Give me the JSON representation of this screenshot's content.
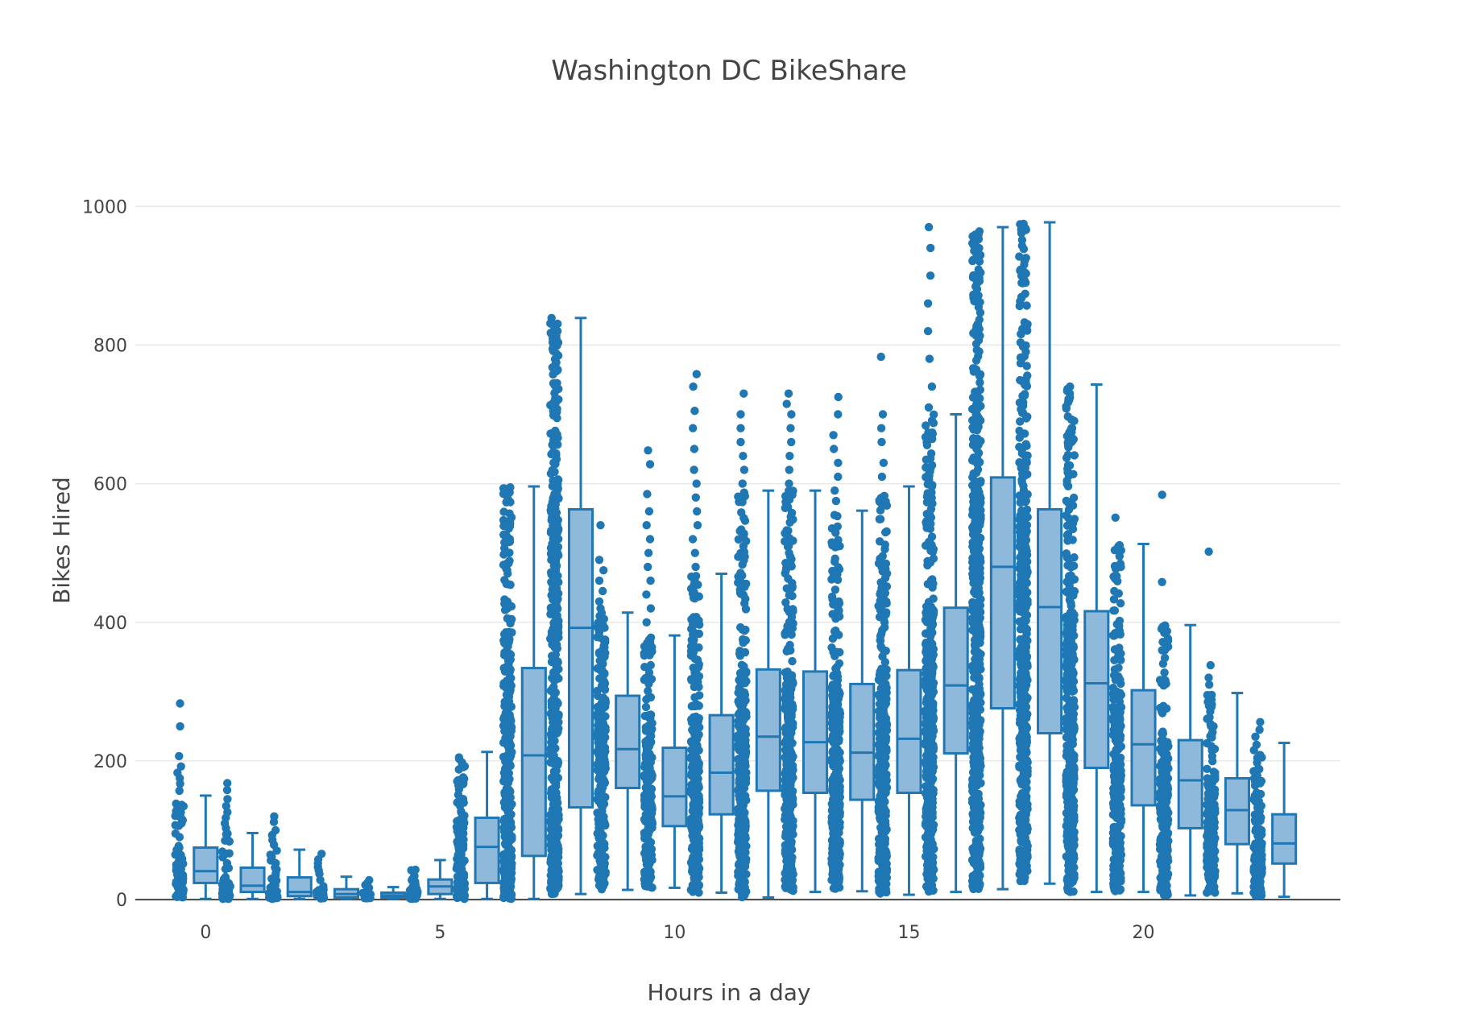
{
  "chart_data": {
    "type": "box",
    "title": "Washington DC BikeShare",
    "xlabel": "Hours in a day",
    "ylabel": "Bikes Hired",
    "xlim": [
      -1.5,
      24.2
    ],
    "ylim": [
      -15,
      1070
    ],
    "x_ticks": [
      0,
      5,
      10,
      15,
      20
    ],
    "y_ticks": [
      0,
      200,
      400,
      600,
      800,
      1000
    ],
    "grid": true,
    "legend": "none",
    "points": "all",
    "colors": {
      "box_line": "#1f77b4",
      "box_fill": "#8fb9da",
      "point": "#1f77b4",
      "grid": "#e8e8e8",
      "zero_line": "#444444",
      "text": "#444444"
    },
    "hours": [
      {
        "x": 0,
        "min": 1,
        "q1": 24,
        "median": 41,
        "q3": 75,
        "max": 150,
        "outliers": [
          157,
          167,
          175,
          183,
          192,
          207,
          250,
          283
        ]
      },
      {
        "x": 1,
        "min": 1,
        "q1": 11,
        "median": 20,
        "q3": 46,
        "max": 96,
        "outliers": [
          103,
          110,
          118,
          126,
          135,
          145,
          158,
          168
        ]
      },
      {
        "x": 2,
        "min": 1,
        "q1": 5,
        "median": 11,
        "q3": 32,
        "max": 72,
        "outliers": [
          79,
          86,
          93,
          100,
          112,
          120
        ]
      },
      {
        "x": 3,
        "min": 1,
        "q1": 3,
        "median": 8,
        "q3": 15,
        "max": 33,
        "outliers": [
          37,
          42,
          47,
          52,
          58,
          66
        ]
      },
      {
        "x": 4,
        "min": 1,
        "q1": 3,
        "median": 6,
        "q3": 10,
        "max": 18,
        "outliers": [
          21,
          24,
          28
        ]
      },
      {
        "x": 5,
        "min": 1,
        "q1": 8,
        "median": 19,
        "q3": 29,
        "max": 57,
        "outliers": []
      },
      {
        "x": 6,
        "min": 1,
        "q1": 24,
        "median": 76,
        "q3": 118,
        "max": 213,
        "outliers": []
      },
      {
        "x": 7,
        "min": 1,
        "q1": 63,
        "median": 208,
        "q3": 334,
        "max": 596,
        "outliers": []
      },
      {
        "x": 8,
        "min": 8,
        "q1": 133,
        "median": 392,
        "q3": 563,
        "max": 839,
        "outliers": []
      },
      {
        "x": 9,
        "min": 14,
        "q1": 161,
        "median": 217,
        "q3": 294,
        "max": 414,
        "outliers": [
          420,
          430,
          445,
          460,
          475,
          490,
          540
        ]
      },
      {
        "x": 10,
        "min": 17,
        "q1": 106,
        "median": 149,
        "q3": 219,
        "max": 381,
        "outliers": [
          400,
          420,
          440,
          460,
          480,
          500,
          520,
          540,
          560,
          585,
          628,
          648
        ]
      },
      {
        "x": 11,
        "min": 10,
        "q1": 123,
        "median": 183,
        "q3": 266,
        "max": 470,
        "outliers": [
          480,
          500,
          520,
          540,
          560,
          580,
          600,
          620,
          650,
          680,
          705,
          740,
          758
        ]
      },
      {
        "x": 12,
        "min": 3,
        "q1": 157,
        "median": 235,
        "q3": 332,
        "max": 590,
        "outliers": [
          600,
          620,
          640,
          660,
          680,
          700,
          730
        ]
      },
      {
        "x": 13,
        "min": 11,
        "q1": 154,
        "median": 227,
        "q3": 329,
        "max": 590,
        "outliers": [
          600,
          620,
          640,
          660,
          680,
          700,
          715,
          730
        ]
      },
      {
        "x": 14,
        "min": 12,
        "q1": 144,
        "median": 212,
        "q3": 311,
        "max": 561,
        "outliers": [
          575,
          590,
          610,
          630,
          650,
          670,
          700,
          725
        ]
      },
      {
        "x": 15,
        "min": 7,
        "q1": 154,
        "median": 232,
        "q3": 331,
        "max": 596,
        "outliers": [
          610,
          630,
          660,
          680,
          700,
          783
        ]
      },
      {
        "x": 16,
        "min": 11,
        "q1": 211,
        "median": 309,
        "q3": 421,
        "max": 700,
        "outliers": [
          710,
          740,
          780,
          820,
          860,
          900,
          940,
          970
        ]
      },
      {
        "x": 17,
        "min": 15,
        "q1": 276,
        "median": 480,
        "q3": 609,
        "max": 970,
        "outliers": []
      },
      {
        "x": 18,
        "min": 23,
        "q1": 240,
        "median": 422,
        "q3": 563,
        "max": 977,
        "outliers": []
      },
      {
        "x": 19,
        "min": 11,
        "q1": 190,
        "median": 312,
        "q3": 416,
        "max": 743,
        "outliers": []
      },
      {
        "x": 20,
        "min": 11,
        "q1": 136,
        "median": 224,
        "q3": 302,
        "max": 513,
        "outliers": [
          551
        ]
      },
      {
        "x": 21,
        "min": 6,
        "q1": 103,
        "median": 172,
        "q3": 230,
        "max": 396,
        "outliers": [
          458,
          584
        ]
      },
      {
        "x": 22,
        "min": 9,
        "q1": 80,
        "median": 129,
        "q3": 175,
        "max": 298,
        "outliers": [
          310,
          320,
          338,
          502
        ]
      },
      {
        "x": 23,
        "min": 4,
        "q1": 52,
        "median": 81,
        "q3": 123,
        "max": 226,
        "outliers": [
          235,
          245,
          256
        ]
      }
    ]
  }
}
